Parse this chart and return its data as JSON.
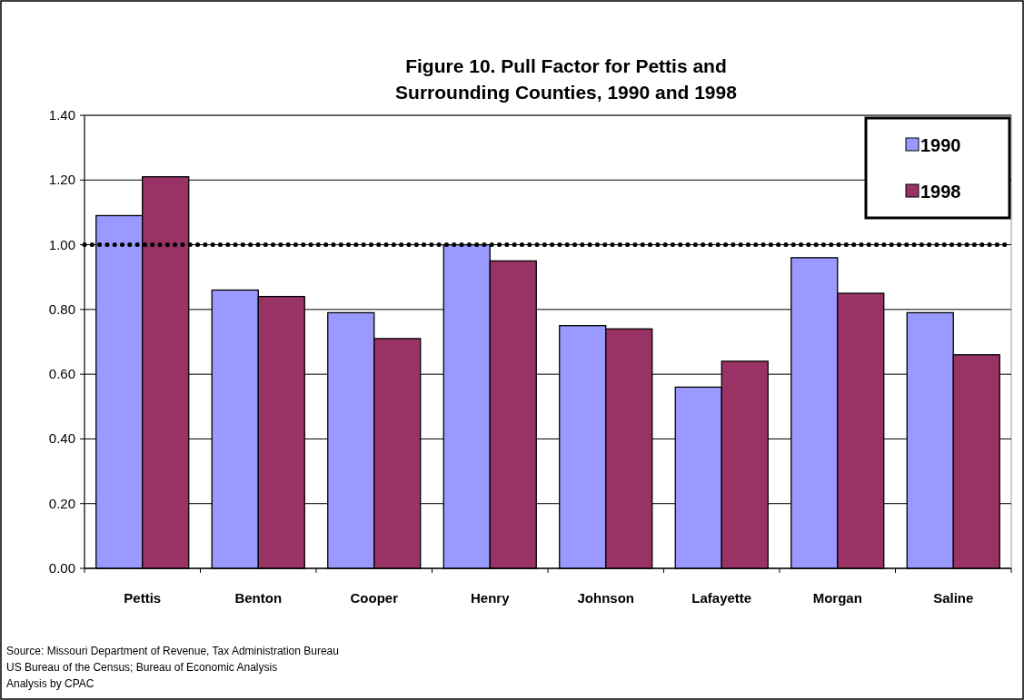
{
  "chart_data": {
    "type": "bar",
    "title": "Figure 10.  Pull Factor for Pettis and Surrounding Counties, 1990 and 1998",
    "categories": [
      "Pettis",
      "Benton",
      "Cooper",
      "Henry",
      "Johnson",
      "Lafayette",
      "Morgan",
      "Saline"
    ],
    "series": [
      {
        "name": "1990",
        "color": "#9999ff",
        "values": [
          1.09,
          0.86,
          0.79,
          1.0,
          0.75,
          0.56,
          0.96,
          0.79
        ]
      },
      {
        "name": "1998",
        "color": "#993366",
        "values": [
          1.21,
          0.84,
          0.71,
          0.95,
          0.74,
          0.64,
          0.85,
          0.66
        ]
      }
    ],
    "ylim": [
      0,
      1.4
    ],
    "yticks": [
      {
        "value": 0,
        "label": "0.00"
      },
      {
        "value": 0.2,
        "label": "0.20"
      },
      {
        "value": 0.4,
        "label": "0.40"
      },
      {
        "value": 0.6,
        "label": "0.60"
      },
      {
        "value": 0.8,
        "label": "0.80"
      },
      {
        "value": 1.0,
        "label": "1.00"
      },
      {
        "value": 1.2,
        "label": "1.20"
      },
      {
        "value": 1.4,
        "label": "1.40"
      }
    ],
    "grid": "y",
    "legend": "top right",
    "ref_lines": [
      {
        "axis": "y",
        "value": 1.0,
        "color": "#000000",
        "line_style": "dotted"
      }
    ],
    "annotations": [
      "Source: Missouri Department of Revenue, Tax Administration Bureau",
      "US Bureau of the Census; Bureau of Economic Analysis",
      "Analysis by CPAC"
    ]
  }
}
